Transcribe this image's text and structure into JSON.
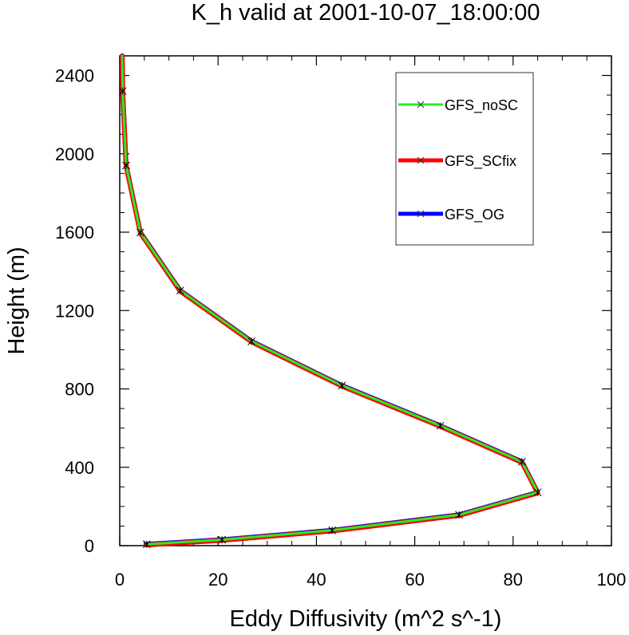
{
  "chart_data": {
    "type": "line",
    "title": "K_h valid at 2001-10-07_18:00:00",
    "xlabel": "Eddy Diffusivity (m^2 s^-1)",
    "ylabel": "Height (m)",
    "xlim": [
      0,
      100
    ],
    "ylim": [
      0,
      2500
    ],
    "xticks": [
      0,
      20,
      40,
      60,
      80,
      100
    ],
    "yticks": [
      0,
      400,
      800,
      1200,
      1600,
      2000,
      2400
    ],
    "xtick_labels": [
      "0",
      "20",
      "40",
      "60",
      "80",
      100
    ],
    "ytick_labels": [
      "0",
      "400",
      "800",
      "1200",
      "1600",
      "2000",
      "2400"
    ],
    "legend_position": "top-right",
    "series": [
      {
        "name": "GFS_OG",
        "color": "#0000ff",
        "x": [
          5.5,
          20.8,
          43.2,
          69.0,
          85.0,
          81.8,
          65.2,
          45.2,
          26.8,
          12.3,
          4.2,
          1.3,
          0.6,
          0.5
        ],
        "y": [
          7,
          30,
          78,
          157,
          272,
          428,
          612,
          817,
          1043,
          1302,
          1598,
          1940,
          2320,
          2500
        ]
      },
      {
        "name": "GFS_SCfix",
        "color": "#ff0000",
        "x": [
          5.5,
          20.8,
          43.2,
          69.0,
          85.0,
          81.8,
          65.2,
          45.2,
          26.8,
          12.3,
          4.2,
          1.3,
          0.6,
          0.5
        ],
        "y": [
          7,
          30,
          78,
          157,
          272,
          428,
          612,
          817,
          1043,
          1302,
          1598,
          1940,
          2320,
          2500
        ]
      },
      {
        "name": "GFS_noSC",
        "color": "#22ee22",
        "x": [
          5.5,
          20.8,
          43.2,
          69.0,
          85.0,
          81.8,
          65.2,
          45.2,
          26.8,
          12.3,
          4.2,
          1.3,
          0.6,
          0.5
        ],
        "y": [
          7,
          30,
          78,
          157,
          272,
          428,
          612,
          817,
          1043,
          1302,
          1598,
          1940,
          2320,
          2500
        ]
      }
    ],
    "legend": [
      {
        "label": "GFS_noSC",
        "color": "#22ee22"
      },
      {
        "label": "GFS_SCfix",
        "color": "#ff0000"
      },
      {
        "label": "GFS_OG",
        "color": "#0000ff"
      }
    ]
  }
}
